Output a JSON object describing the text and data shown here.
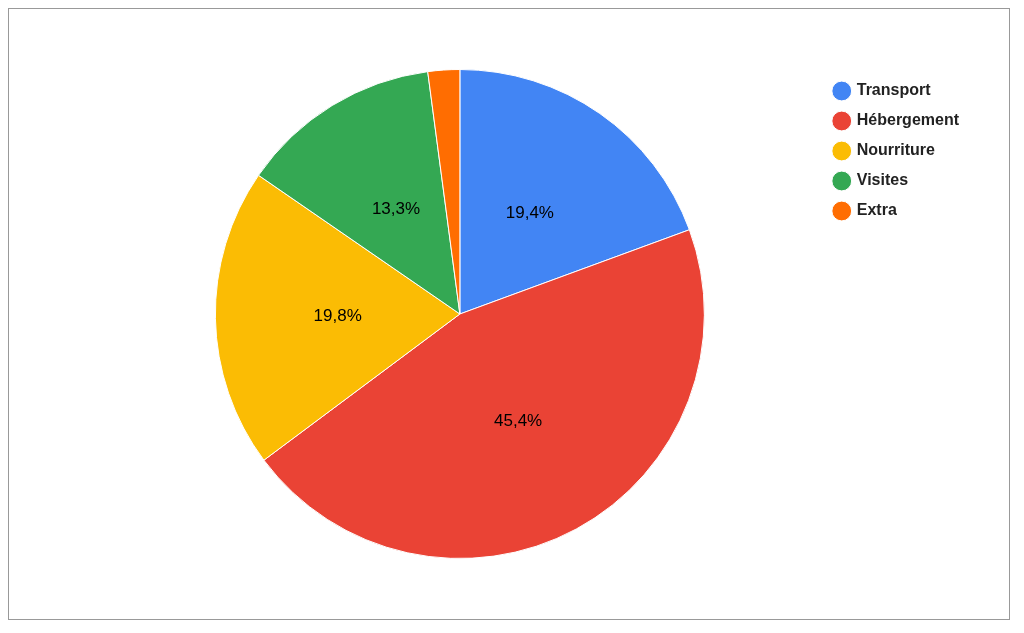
{
  "chart_data": {
    "type": "pie",
    "categories": [
      "Transport",
      "Hébergement",
      "Nourriture",
      "Visites",
      "Extra"
    ],
    "values": [
      19.4,
      45.4,
      19.8,
      13.3,
      2.1
    ],
    "colors": [
      "#4285f4",
      "#ea4335",
      "#fbbc04",
      "#34a853",
      "#ff6d01"
    ],
    "value_labels": [
      "19,4%",
      "45,4%",
      "19,8%",
      "13,3%",
      null
    ],
    "legend": "top right"
  }
}
